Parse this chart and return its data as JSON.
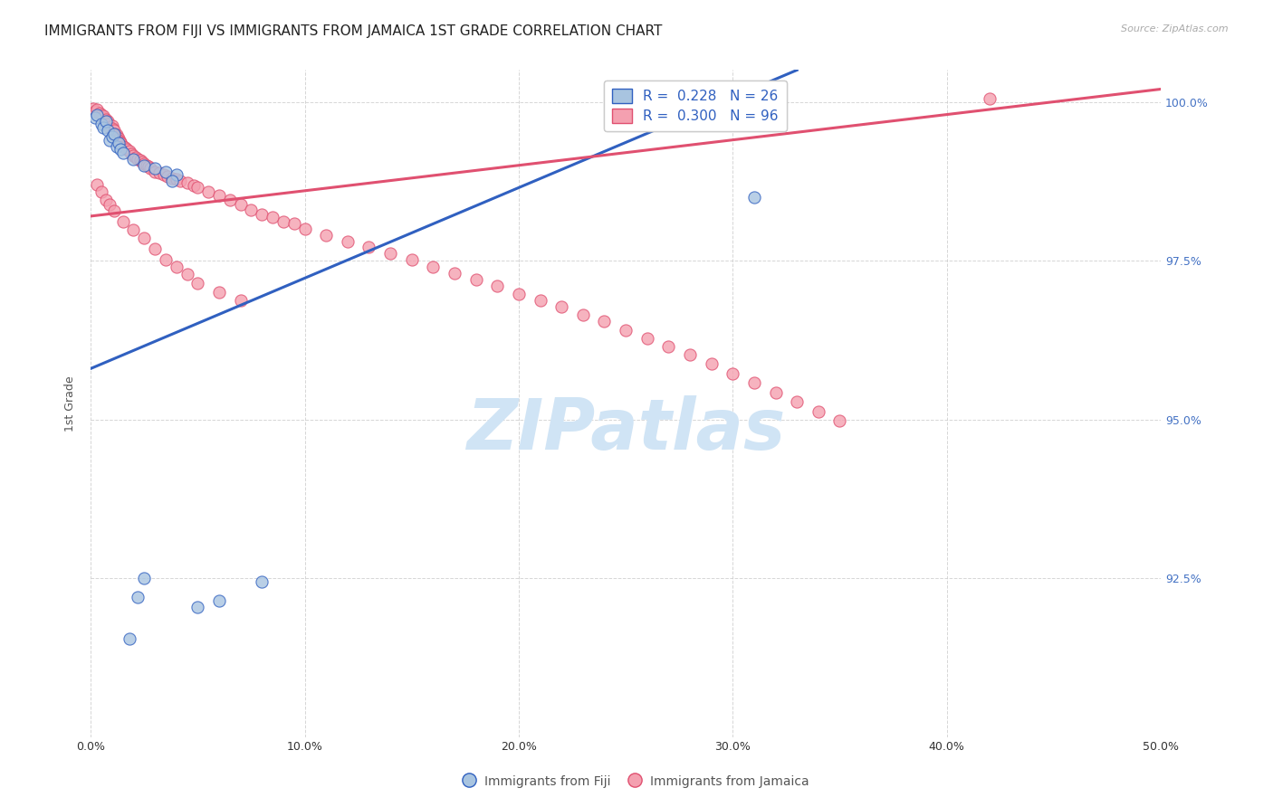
{
  "title": "IMMIGRANTS FROM FIJI VS IMMIGRANTS FROM JAMAICA 1ST GRADE CORRELATION CHART",
  "source": "Source: ZipAtlas.com",
  "ylabel": "1st Grade",
  "xlim": [
    0.0,
    0.5
  ],
  "ylim": [
    0.9,
    1.005
  ],
  "xtick_labels": [
    "0.0%",
    "10.0%",
    "20.0%",
    "30.0%",
    "40.0%",
    "50.0%"
  ],
  "xtick_values": [
    0.0,
    0.1,
    0.2,
    0.3,
    0.4,
    0.5
  ],
  "ytick_labels": [
    "92.5%",
    "95.0%",
    "97.5%",
    "100.0%"
  ],
  "ytick_values": [
    0.925,
    0.95,
    0.975,
    1.0
  ],
  "fiji_color": "#a8c4e0",
  "jamaica_color": "#f4a0b0",
  "fiji_line_color": "#3060c0",
  "jamaica_line_color": "#e05070",
  "fiji_R": 0.228,
  "fiji_N": 26,
  "jamaica_R": 0.3,
  "jamaica_N": 96,
  "fiji_scatter_x": [
    0.002,
    0.003,
    0.005,
    0.006,
    0.007,
    0.008,
    0.009,
    0.01,
    0.011,
    0.012,
    0.013,
    0.014,
    0.015,
    0.02,
    0.025,
    0.03,
    0.035,
    0.04,
    0.05,
    0.06,
    0.08,
    0.038,
    0.31,
    0.025,
    0.022,
    0.018
  ],
  "fiji_scatter_y": [
    0.9975,
    0.998,
    0.9965,
    0.996,
    0.997,
    0.9955,
    0.994,
    0.9945,
    0.995,
    0.993,
    0.9935,
    0.9925,
    0.992,
    0.991,
    0.99,
    0.9895,
    0.989,
    0.9885,
    0.9205,
    0.9215,
    0.9245,
    0.9875,
    0.985,
    0.925,
    0.922,
    0.9155
  ],
  "jamaica_scatter_x": [
    0.001,
    0.002,
    0.003,
    0.004,
    0.005,
    0.006,
    0.006,
    0.007,
    0.007,
    0.008,
    0.008,
    0.009,
    0.01,
    0.01,
    0.011,
    0.011,
    0.012,
    0.012,
    0.013,
    0.013,
    0.014,
    0.014,
    0.015,
    0.016,
    0.017,
    0.018,
    0.019,
    0.02,
    0.021,
    0.022,
    0.023,
    0.024,
    0.025,
    0.026,
    0.027,
    0.028,
    0.03,
    0.032,
    0.034,
    0.036,
    0.038,
    0.04,
    0.042,
    0.045,
    0.048,
    0.05,
    0.055,
    0.06,
    0.065,
    0.07,
    0.075,
    0.08,
    0.085,
    0.09,
    0.095,
    0.1,
    0.11,
    0.12,
    0.13,
    0.14,
    0.15,
    0.16,
    0.17,
    0.18,
    0.19,
    0.2,
    0.21,
    0.22,
    0.23,
    0.24,
    0.25,
    0.26,
    0.27,
    0.28,
    0.29,
    0.3,
    0.31,
    0.32,
    0.33,
    0.34,
    0.35,
    0.42,
    0.003,
    0.005,
    0.007,
    0.009,
    0.011,
    0.015,
    0.02,
    0.025,
    0.03,
    0.035,
    0.04,
    0.045,
    0.05,
    0.06,
    0.07
  ],
  "jamaica_scatter_y": [
    0.999,
    0.9985,
    0.9988,
    0.9982,
    0.998,
    0.9975,
    0.9978,
    0.9972,
    0.9968,
    0.997,
    0.9965,
    0.996,
    0.9962,
    0.9958,
    0.9955,
    0.995,
    0.9948,
    0.9945,
    0.9942,
    0.994,
    0.9937,
    0.9935,
    0.993,
    0.9928,
    0.9925,
    0.9922,
    0.9918,
    0.9916,
    0.9912,
    0.991,
    0.9908,
    0.9905,
    0.9902,
    0.99,
    0.9898,
    0.9895,
    0.989,
    0.9888,
    0.9885,
    0.9882,
    0.988,
    0.9878,
    0.9875,
    0.9872,
    0.9868,
    0.9865,
    0.9858,
    0.9852,
    0.9845,
    0.9838,
    0.983,
    0.9822,
    0.9818,
    0.9812,
    0.9808,
    0.98,
    0.979,
    0.978,
    0.9772,
    0.9762,
    0.9752,
    0.974,
    0.973,
    0.972,
    0.971,
    0.9698,
    0.9688,
    0.9678,
    0.9665,
    0.9655,
    0.964,
    0.9628,
    0.9615,
    0.9602,
    0.9588,
    0.9572,
    0.9558,
    0.9542,
    0.9528,
    0.9512,
    0.9498,
    1.0005,
    0.987,
    0.9858,
    0.9845,
    0.9838,
    0.9828,
    0.9812,
    0.9798,
    0.9785,
    0.9768,
    0.9752,
    0.974,
    0.9728,
    0.9715,
    0.97,
    0.9688
  ],
  "fiji_line_x": [
    0.0,
    0.33
  ],
  "fiji_line_y": [
    0.958,
    1.005
  ],
  "jamaica_line_x": [
    0.0,
    0.5
  ],
  "jamaica_line_y": [
    0.982,
    1.002
  ],
  "watermark_text": "ZIPatlas",
  "watermark_color": "#d0e4f5",
  "background_color": "#ffffff",
  "grid_color": "#cccccc",
  "legend_fiji_label": "R =  0.228   N = 26",
  "legend_jamaica_label": "R =  0.300   N = 96",
  "bottom_legend_fiji": "Immigrants from Fiji",
  "bottom_legend_jamaica": "Immigrants from Jamaica",
  "title_fontsize": 11,
  "axis_label_fontsize": 9,
  "tick_fontsize": 9,
  "right_tick_color": "#4472c4"
}
